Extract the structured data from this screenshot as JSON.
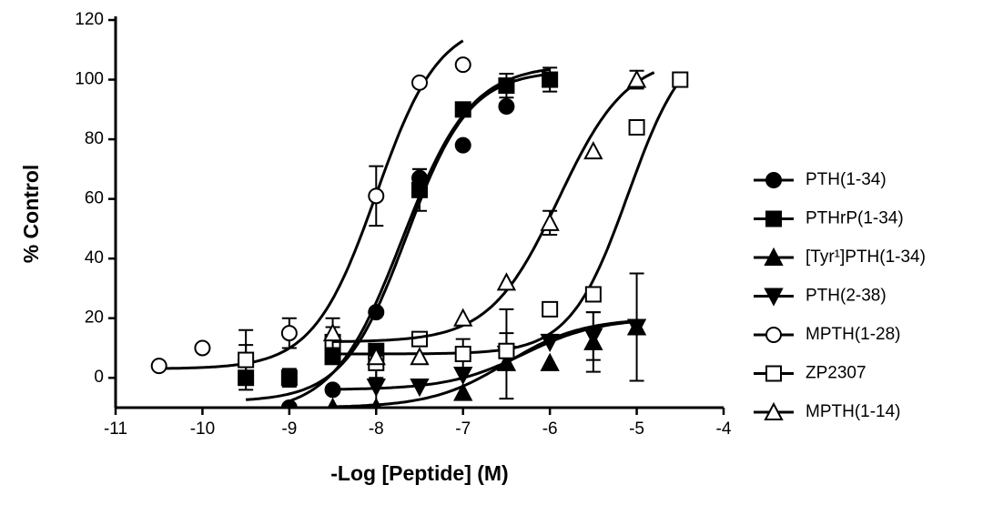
{
  "chart_data": {
    "type": "dose-response",
    "x_label": "-Log [Peptide] (M)",
    "y_label": "% Control",
    "xlim": [
      -11,
      -4
    ],
    "xticks": [
      -11,
      -10,
      -9,
      -8,
      -7,
      -6,
      -5,
      -4
    ],
    "ylim": [
      -10,
      120
    ],
    "yticks": [
      0,
      20,
      40,
      60,
      80,
      100,
      120
    ],
    "series": [
      {
        "name": "PTH(1-34)",
        "color": "#000000",
        "marker": "circle",
        "filled": true,
        "x": [
          -9,
          -8.5,
          -8,
          -7.5,
          -7,
          -6.5
        ],
        "values": [
          -10,
          -4,
          22,
          67,
          78,
          91
        ],
        "errors": [
          null,
          null,
          null,
          3,
          null,
          null
        ],
        "fit": {
          "bottom": -12,
          "top": 105,
          "log_ec50": -7.7,
          "hill": 1.1,
          "range": [
            -9,
            -6
          ]
        }
      },
      {
        "name": "PTHrP(1-34)",
        "color": "#000000",
        "marker": "square",
        "filled": true,
        "x": [
          -9.5,
          -9,
          -8.5,
          -8,
          -7.5,
          -7,
          -6.5,
          -6
        ],
        "values": [
          0,
          0,
          7,
          9,
          63,
          90,
          98,
          100
        ],
        "errors": [
          null,
          3,
          null,
          null,
          7,
          null,
          4,
          4
        ],
        "fit": {
          "bottom": -8,
          "top": 103,
          "log_ec50": -7.65,
          "hill": 1.2,
          "range": [
            -9.5,
            -6
          ]
        }
      },
      {
        "name": "[Tyr¹]PTH(1-34)",
        "color": "#000000",
        "marker": "triangle",
        "filled": true,
        "x": [
          -8.5,
          -8,
          -7,
          -6.5,
          -6,
          -5.5,
          -5
        ],
        "values": [
          -10,
          -10,
          -5,
          5,
          5,
          12,
          17
        ],
        "errors": [
          null,
          null,
          null,
          null,
          null,
          10,
          null
        ],
        "fit": {
          "bottom": -10,
          "top": 20,
          "log_ec50": -6.5,
          "hill": 1,
          "range": [
            -8.5,
            -5
          ]
        }
      },
      {
        "name": "PTH(2-38)",
        "color": "#000000",
        "marker": "triangle-down",
        "filled": true,
        "x": [
          -8,
          -7.5,
          -7,
          -6.5,
          -6,
          -5.5,
          -5
        ],
        "values": [
          -3,
          -3,
          1,
          8,
          12,
          14,
          17
        ],
        "errors": [
          6,
          null,
          null,
          15,
          null,
          8,
          18
        ],
        "fit": {
          "bottom": -4,
          "top": 20,
          "log_ec50": -6.3,
          "hill": 1,
          "range": [
            -8.5,
            -5
          ]
        }
      },
      {
        "name": "MPTH(1-28)",
        "color": "#000000",
        "marker": "circle",
        "filled": false,
        "x": [
          -10.5,
          -10,
          -9.5,
          -9,
          -8,
          -7.5,
          -7
        ],
        "values": [
          4,
          10,
          6,
          15,
          61,
          99,
          105
        ],
        "errors": [
          null,
          null,
          5,
          5,
          10,
          null,
          null
        ],
        "fit": {
          "bottom": 3,
          "top": 120,
          "log_ec50": -8,
          "hill": 1.2,
          "range": [
            -10.5,
            -7
          ]
        }
      },
      {
        "name": "ZP2307",
        "color": "#000000",
        "marker": "square",
        "filled": false,
        "x": [
          -9.5,
          -8.5,
          -8,
          -7.5,
          -7,
          -6.5,
          -6,
          -5.5,
          -5,
          -4.5
        ],
        "values": [
          6,
          12,
          5,
          13,
          8,
          9,
          23,
          28,
          84,
          100
        ],
        "errors": [
          10,
          5,
          5,
          null,
          5,
          6,
          null,
          null,
          null,
          null
        ],
        "fit": {
          "bottom": 8,
          "top": 115,
          "log_ec50": -5.1,
          "hill": 1.3,
          "range": [
            -8.5,
            -4.5
          ]
        }
      },
      {
        "name": "MPTH(1-14)",
        "color": "#000000",
        "marker": "triangle",
        "filled": false,
        "x": [
          -8.5,
          -8,
          -7.5,
          -7,
          -6.5,
          -6,
          -5.5,
          -5
        ],
        "values": [
          15,
          7,
          7,
          20,
          32,
          52,
          76,
          100
        ],
        "errors": [
          5,
          null,
          null,
          null,
          null,
          4,
          null,
          3
        ],
        "fit": {
          "bottom": 12,
          "top": 108,
          "log_ec50": -5.9,
          "hill": 1.1,
          "range": [
            -8.5,
            -4.8
          ]
        }
      }
    ]
  }
}
